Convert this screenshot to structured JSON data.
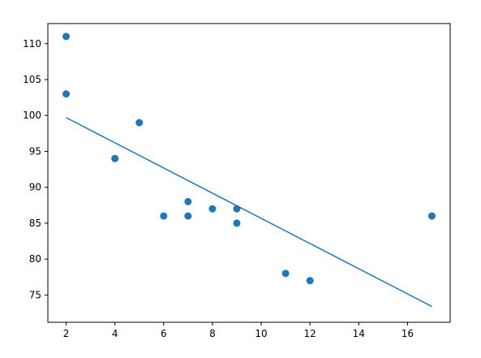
{
  "chart_data": {
    "type": "scatter",
    "title": "",
    "xlabel": "",
    "ylabel": "",
    "xlim": [
      1.25,
      17.75
    ],
    "ylim": [
      71.2,
      112.8
    ],
    "x_ticks": [
      2,
      4,
      6,
      8,
      10,
      12,
      14,
      16
    ],
    "y_ticks": [
      75,
      80,
      85,
      90,
      95,
      100,
      105,
      110
    ],
    "grid": false,
    "color": "#1f77b4",
    "series": [
      {
        "type": "scatter",
        "points": [
          {
            "x": 2,
            "y": 111
          },
          {
            "x": 2,
            "y": 103
          },
          {
            "x": 4,
            "y": 94
          },
          {
            "x": 5,
            "y": 99
          },
          {
            "x": 6,
            "y": 86
          },
          {
            "x": 7,
            "y": 88
          },
          {
            "x": 7,
            "y": 86
          },
          {
            "x": 8,
            "y": 87
          },
          {
            "x": 9,
            "y": 87
          },
          {
            "x": 9,
            "y": 85
          },
          {
            "x": 11,
            "y": 78
          },
          {
            "x": 12,
            "y": 77
          },
          {
            "x": 17,
            "y": 86
          }
        ]
      },
      {
        "type": "line",
        "points": [
          {
            "x": 2,
            "y": 99.7
          },
          {
            "x": 17,
            "y": 73.4
          }
        ]
      }
    ]
  }
}
